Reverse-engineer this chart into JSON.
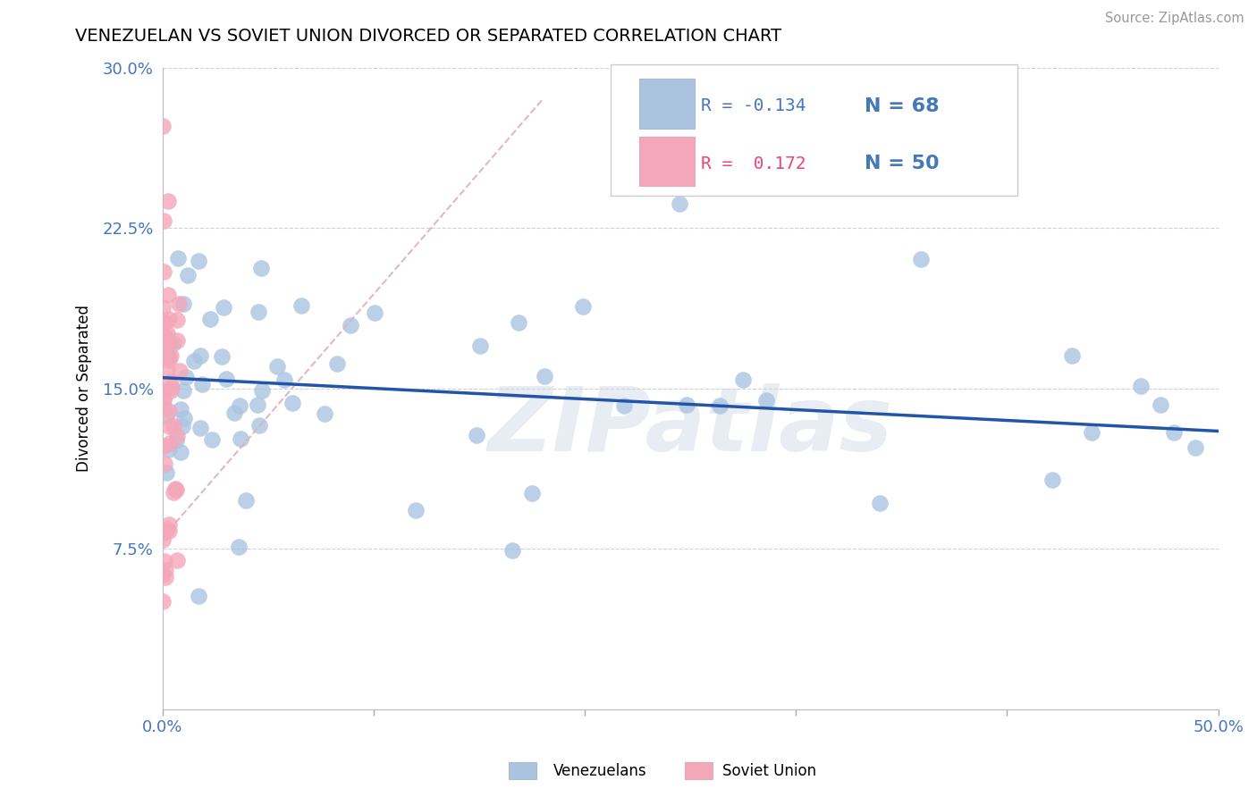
{
  "title": "VENEZUELAN VS SOVIET UNION DIVORCED OR SEPARATED CORRELATION CHART",
  "source": "Source: ZipAtlas.com",
  "ylabel": "Divorced or Separated",
  "xlim": [
    0.0,
    0.5
  ],
  "ylim": [
    0.0,
    0.3
  ],
  "venezuelan_R": -0.134,
  "venezuelan_N": 68,
  "soviet_R": 0.172,
  "soviet_N": 50,
  "venezuelan_color": "#aac4e0",
  "soviet_color": "#f4a7b9",
  "trend_line_color": "#2255aa",
  "soviet_trend_color": "#cc8899",
  "tick_color": "#4477bb",
  "watermark": "ZIPatlas",
  "legend_edge_color": "#cccccc",
  "grid_color": "#cccccc",
  "title_fontsize": 14,
  "axis_fontsize": 13,
  "legend_fontsize": 15
}
